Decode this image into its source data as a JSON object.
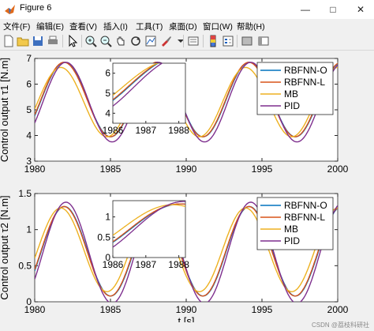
{
  "window": {
    "title": "Figure 6"
  },
  "menu": [
    "文件(F)",
    "编辑(E)",
    "查看(V)",
    "插入(I)",
    "工具(T)",
    "桌面(D)",
    "窗口(W)",
    "帮助(H)"
  ],
  "toolbar": [
    "new-file",
    "open-folder",
    "save",
    "print",
    "pointer",
    "zoom-in",
    "zoom-out",
    "pan",
    "rotate-3d",
    "data-cursor",
    "brush",
    "link-plot",
    "colorbar",
    "legend",
    "hide-plot-tools",
    "show-plot-tools"
  ],
  "watermark": "CSDN @荔枝科研社",
  "chart_data": [
    {
      "type": "line",
      "ylabel": "Control output τ1 [N.m]",
      "xlabel": "",
      "xlim": [
        1980,
        2000
      ],
      "ylim": [
        3,
        7
      ],
      "xticks": [
        "1980",
        "1985",
        "1990",
        "1995",
        "2000"
      ],
      "yticks": [
        "3",
        "4",
        "5",
        "6",
        "7"
      ],
      "legend_position": "top-right",
      "series": [
        {
          "name": "RBFNN-O",
          "color": "#0072BD",
          "model": {
            "mean": 5.4,
            "amp": 1.45,
            "period": 6.1,
            "phase": -0.45
          }
        },
        {
          "name": "RBFNN-L",
          "color": "#D95319",
          "model": {
            "mean": 5.4,
            "amp": 1.45,
            "period": 6.1,
            "phase": -0.42
          }
        },
        {
          "name": "MB",
          "color": "#EDB120",
          "model": {
            "mean": 5.3,
            "amp": 1.35,
            "period": 6.1,
            "phase": -0.2
          }
        },
        {
          "name": "PID",
          "color": "#7E2F8E",
          "model": {
            "mean": 5.3,
            "amp": 1.55,
            "period": 6.1,
            "phase": -0.55
          }
        }
      ],
      "inset": {
        "xlim": [
          1986,
          1988.2
        ],
        "ylim": [
          3.5,
          6.5
        ],
        "xticks": [
          "1986",
          "1987",
          "1988"
        ],
        "yticks": [
          "4",
          "5",
          "6"
        ]
      }
    },
    {
      "type": "line",
      "ylabel": "Control output τ2 [N.m]",
      "xlabel": "t [s]",
      "xlim": [
        1980,
        2000
      ],
      "ylim": [
        0,
        1.5
      ],
      "xticks": [
        "1980",
        "1985",
        "1990",
        "1995",
        "2000"
      ],
      "yticks": [
        "0",
        "0.5",
        "1",
        "1.5"
      ],
      "legend_position": "top-right",
      "series": [
        {
          "name": "RBFNN-O",
          "color": "#0072BD",
          "model": {
            "mean": 0.7,
            "amp": 0.62,
            "period": 6.1,
            "phase": -0.45
          }
        },
        {
          "name": "RBFNN-L",
          "color": "#D95319",
          "model": {
            "mean": 0.7,
            "amp": 0.62,
            "period": 6.1,
            "phase": -0.42
          }
        },
        {
          "name": "MB",
          "color": "#EDB120",
          "model": {
            "mean": 0.72,
            "amp": 0.58,
            "period": 6.1,
            "phase": -0.2
          }
        },
        {
          "name": "PID",
          "color": "#7E2F8E",
          "model": {
            "mean": 0.68,
            "amp": 0.7,
            "period": 6.1,
            "phase": -0.55
          }
        }
      ],
      "inset": {
        "xlim": [
          1986,
          1988.2
        ],
        "ylim": [
          0,
          1.4
        ],
        "xticks": [
          "1986",
          "1987",
          "1988"
        ],
        "yticks": [
          "0",
          "0.5",
          "1"
        ]
      }
    }
  ]
}
